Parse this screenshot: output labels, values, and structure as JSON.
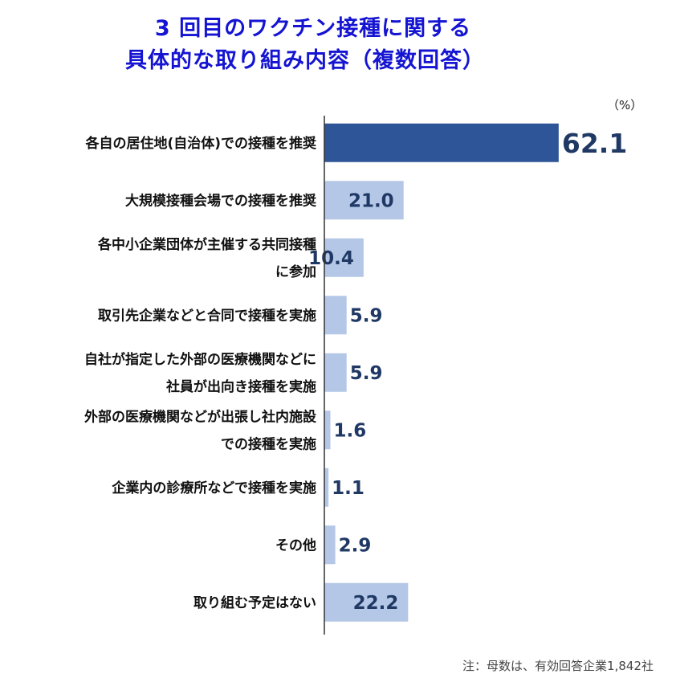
{
  "chart_data": {
    "type": "bar",
    "orientation": "horizontal",
    "title": [
      "3 回目のワクチン接種に関する",
      "具体的な取り組み内容（複数回答）"
    ],
    "unit": "（%）",
    "note": "注：母数は、有効回答企業1,842社",
    "xlim": [
      0,
      100
    ],
    "categories": [
      [
        "各自の居住地(自治体)での接種を推奨"
      ],
      [
        "大規模接種会場での接種を推奨"
      ],
      [
        "各中小企業団体が主催する共同接種",
        "に参加"
      ],
      [
        "取引先企業などと合同で接種を実施"
      ],
      [
        "自社が指定した外部の医療機関などに",
        "社員が出向き接種を実施"
      ],
      [
        "外部の医療機関などが出張し社内施設",
        "での接種を実施"
      ],
      [
        "企業内の診療所などで接種を実施"
      ],
      [
        "その他"
      ],
      [
        "取り組む予定はない"
      ]
    ],
    "values": [
      62.1,
      21.0,
      10.4,
      5.9,
      5.9,
      1.6,
      1.1,
      2.9,
      22.2
    ],
    "value_labels": [
      "62.1",
      "21.0",
      "10.4",
      "5.9",
      "5.9",
      "1.6",
      "1.1",
      "2.9",
      "22.2"
    ],
    "colors": {
      "highlight": "#2e5597",
      "normal": "#b4c7e7",
      "value_text": "#1f3864",
      "title": "#1414d2"
    }
  }
}
